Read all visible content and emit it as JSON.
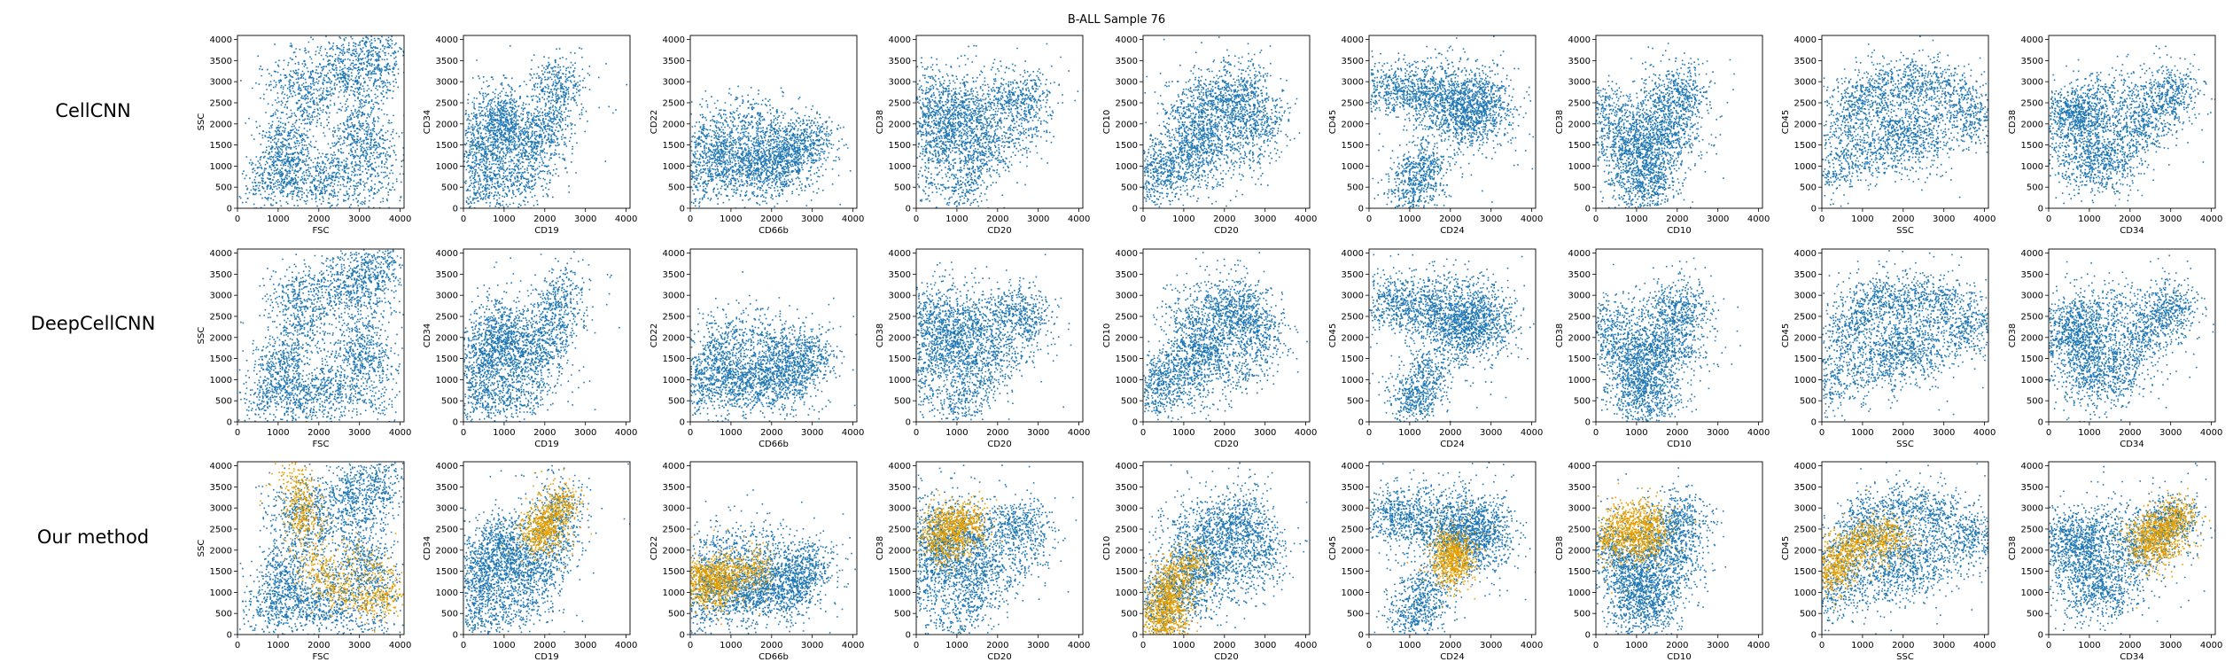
{
  "figure_title": "B-ALL Sample 76",
  "row_labels": [
    "CellCNN",
    "DeepCellCNN",
    "Our method"
  ],
  "colors": {
    "population": "#1f77b4",
    "highlight": "#e69f00"
  },
  "chart_data": {
    "type": "scatter",
    "title": "B-ALL Sample 76",
    "xlim": [
      0,
      4096
    ],
    "ylim": [
      0,
      4096
    ],
    "xticks": [
      0,
      1000,
      2000,
      3000,
      4000
    ],
    "yticks": [
      0,
      500,
      1000,
      1500,
      2000,
      2500,
      3000,
      3500,
      4000
    ],
    "grid": false,
    "rows": [
      "CellCNN",
      "DeepCellCNN",
      "Our method"
    ],
    "panels": [
      {
        "xlabel": "FSC",
        "ylabel": "SSC",
        "blue": [
          [
            600,
            400
          ],
          [
            1000,
            1200
          ],
          [
            1500,
            2200
          ],
          [
            2200,
            3000
          ],
          [
            3000,
            3500
          ],
          [
            3800,
            3900
          ],
          [
            2800,
            2000
          ],
          [
            3500,
            1400
          ],
          [
            2500,
            1000
          ],
          [
            1800,
            700
          ],
          [
            1200,
            500
          ],
          [
            900,
            2800
          ],
          [
            2500,
            3800
          ],
          [
            3800,
            500
          ]
        ],
        "orange": [
          [
            1400,
            4000
          ],
          [
            1500,
            3000
          ],
          [
            1800,
            1800
          ],
          [
            2200,
            1200
          ],
          [
            2800,
            900
          ],
          [
            3500,
            800
          ],
          [
            4000,
            1200
          ],
          [
            1700,
            2500
          ]
        ]
      },
      {
        "xlabel": "CD19",
        "ylabel": "CD34",
        "blue": [
          [
            200,
            200
          ],
          [
            500,
            1200
          ],
          [
            800,
            2500
          ],
          [
            1000,
            1800
          ],
          [
            1500,
            1500
          ],
          [
            2000,
            1500
          ],
          [
            2200,
            2800
          ],
          [
            2500,
            3300
          ],
          [
            1800,
            800
          ],
          [
            600,
            400
          ],
          [
            1300,
            2200
          ],
          [
            300,
            2000
          ]
        ],
        "orange": [
          [
            1700,
            2200
          ],
          [
            2000,
            2600
          ],
          [
            2300,
            3000
          ],
          [
            2500,
            3300
          ],
          [
            2100,
            2200
          ],
          [
            1900,
            2800
          ]
        ]
      },
      {
        "xlabel": "CD66b",
        "ylabel": "CD22",
        "blue": [
          [
            100,
            300
          ],
          [
            300,
            1500
          ],
          [
            700,
            1200
          ],
          [
            1100,
            800
          ],
          [
            1600,
            1300
          ],
          [
            2200,
            1000
          ],
          [
            2700,
            1600
          ],
          [
            3100,
            1800
          ],
          [
            2400,
            600
          ],
          [
            500,
            1900
          ],
          [
            1500,
            2200
          ],
          [
            2800,
            1300
          ]
        ],
        "orange": [
          [
            0,
            1100
          ],
          [
            200,
            1500
          ],
          [
            400,
            1200
          ],
          [
            700,
            1600
          ],
          [
            900,
            1400
          ],
          [
            500,
            800
          ],
          [
            1400,
            1500
          ],
          [
            1800,
            1700
          ]
        ]
      },
      {
        "xlabel": "CD20",
        "ylabel": "CD38",
        "blue": [
          [
            200,
            500
          ],
          [
            200,
            2700
          ],
          [
            600,
            1500
          ],
          [
            1000,
            2000
          ],
          [
            1200,
            2900
          ],
          [
            1600,
            1200
          ],
          [
            2000,
            2600
          ],
          [
            2600,
            2700
          ],
          [
            3000,
            2300
          ],
          [
            900,
            400
          ],
          [
            1500,
            700
          ],
          [
            500,
            3200
          ]
        ],
        "orange": [
          [
            300,
            2300
          ],
          [
            600,
            2600
          ],
          [
            900,
            2800
          ],
          [
            1100,
            2400
          ],
          [
            500,
            1800
          ],
          [
            1300,
            2500
          ],
          [
            1500,
            2900
          ]
        ]
      },
      {
        "xlabel": "CD20",
        "ylabel": "CD10",
        "blue": [
          [
            200,
            500
          ],
          [
            800,
            1000
          ],
          [
            1200,
            2000
          ],
          [
            1600,
            1500
          ],
          [
            2000,
            2300
          ],
          [
            2400,
            2800
          ],
          [
            2800,
            2300
          ],
          [
            3000,
            1800
          ],
          [
            1500,
            600
          ],
          [
            700,
            2400
          ],
          [
            2600,
            3300
          ],
          [
            400,
            1300
          ]
        ],
        "orange": [
          [
            200,
            300
          ],
          [
            400,
            700
          ],
          [
            600,
            1000
          ],
          [
            800,
            600
          ],
          [
            500,
            1300
          ],
          [
            1000,
            1500
          ],
          [
            1300,
            2000
          ],
          [
            300,
            100
          ],
          [
            900,
            200
          ]
        ]
      },
      {
        "xlabel": "CD24",
        "ylabel": "CD45",
        "blue": [
          [
            200,
            2800
          ],
          [
            700,
            2900
          ],
          [
            1200,
            2700
          ],
          [
            1700,
            2500
          ],
          [
            2200,
            2300
          ],
          [
            2600,
            2600
          ],
          [
            3000,
            2800
          ],
          [
            1500,
            1200
          ],
          [
            1200,
            600
          ],
          [
            800,
            200
          ],
          [
            2000,
            2000
          ],
          [
            3200,
            2000
          ],
          [
            2500,
            3100
          ]
        ],
        "orange": [
          [
            1800,
            1500
          ],
          [
            2000,
            1900
          ],
          [
            2200,
            2200
          ],
          [
            2100,
            1400
          ],
          [
            1900,
            2300
          ],
          [
            2300,
            1800
          ]
        ]
      },
      {
        "xlabel": "CD10",
        "ylabel": "CD38",
        "blue": [
          [
            100,
            2500
          ],
          [
            500,
            2000
          ],
          [
            900,
            1200
          ],
          [
            1300,
            800
          ],
          [
            1700,
            1500
          ],
          [
            2000,
            2500
          ],
          [
            2300,
            2800
          ],
          [
            1500,
            2800
          ],
          [
            600,
            500
          ],
          [
            1800,
            400
          ],
          [
            200,
            1500
          ],
          [
            2400,
            1600
          ]
        ],
        "orange": [
          [
            300,
            2400
          ],
          [
            600,
            2700
          ],
          [
            900,
            2500
          ],
          [
            1200,
            2900
          ],
          [
            1500,
            2600
          ],
          [
            800,
            2100
          ],
          [
            1600,
            2300
          ],
          [
            400,
            2000
          ]
        ]
      },
      {
        "xlabel": "SSC",
        "ylabel": "CD45",
        "blue": [
          [
            100,
            600
          ],
          [
            400,
            1800
          ],
          [
            800,
            2600
          ],
          [
            1300,
            2800
          ],
          [
            2000,
            3000
          ],
          [
            2800,
            3000
          ],
          [
            3600,
            2500
          ],
          [
            4000,
            2100
          ],
          [
            1500,
            2000
          ],
          [
            3000,
            1600
          ],
          [
            600,
            1000
          ],
          [
            2500,
            2200
          ]
        ],
        "orange": [
          [
            150,
            1300
          ],
          [
            300,
            1800
          ],
          [
            500,
            2000
          ],
          [
            800,
            2200
          ],
          [
            1200,
            2300
          ],
          [
            1600,
            2400
          ],
          [
            2000,
            2300
          ],
          [
            400,
            1500
          ]
        ]
      },
      {
        "xlabel": "CD34",
        "ylabel": "CD38",
        "blue": [
          [
            100,
            2200
          ],
          [
            500,
            2400
          ],
          [
            1000,
            1500
          ],
          [
            1500,
            700
          ],
          [
            2000,
            1800
          ],
          [
            2500,
            2500
          ],
          [
            3000,
            2800
          ],
          [
            3300,
            2700
          ],
          [
            700,
            500
          ],
          [
            1800,
            2900
          ],
          [
            300,
            1200
          ],
          [
            1200,
            2600
          ]
        ],
        "orange": [
          [
            2200,
            2000
          ],
          [
            2500,
            2300
          ],
          [
            2800,
            2600
          ],
          [
            3100,
            2800
          ],
          [
            3300,
            2900
          ],
          [
            2600,
            1800
          ],
          [
            3000,
            2200
          ],
          [
            2400,
            2700
          ]
        ]
      }
    ],
    "highlight_rows": [
      2
    ]
  }
}
